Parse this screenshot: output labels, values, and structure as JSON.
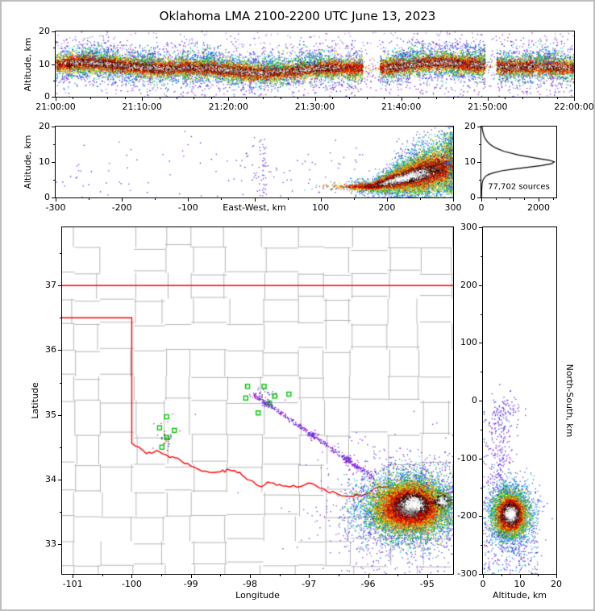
{
  "figure": {
    "title": "Oklahoma LMA 2100-2200 UTC June 13, 2023",
    "background": "#ffffff",
    "border_color": "#bdbdbd"
  },
  "palette": {
    "density_layers": [
      {
        "name": "sparse-purple",
        "color": "#8a2be2"
      },
      {
        "name": "blue",
        "color": "#2b2bee"
      },
      {
        "name": "cyan",
        "color": "#00b8e6"
      },
      {
        "name": "green",
        "color": "#00b300"
      },
      {
        "name": "yellow",
        "color": "#e6d800"
      },
      {
        "name": "orange",
        "color": "#ff8c00"
      },
      {
        "name": "red",
        "color": "#ee1100"
      },
      {
        "name": "dark-red",
        "color": "#990000"
      },
      {
        "name": "black",
        "color": "#141414"
      },
      {
        "name": "gray",
        "color": "#8f8f8f"
      },
      {
        "name": "white",
        "color": "#ffffff"
      }
    ],
    "station_marker": "#00c800",
    "state_border": "#ff0000",
    "county_border": "#b6b6b6",
    "histogram_line": "#000000",
    "trail_colors": [
      "#2b2bee",
      "#8a2be2",
      "#b400b4"
    ]
  },
  "chart_data": [
    {
      "id": "time_height",
      "type": "scatter",
      "ylabel": "Altitude, km",
      "x_ticks": [
        "21:00:00",
        "21:10:00",
        "21:20:00",
        "21:30:00",
        "21:40:00",
        "21:50:00",
        "22:00:00"
      ],
      "x_range_s": [
        0,
        3600
      ],
      "ylim": [
        0,
        20
      ],
      "y_ticks": [
        0,
        10,
        20
      ],
      "band": {
        "center_km": 9.0,
        "wave1_amp": 1.1,
        "wave1_period_s": 2600,
        "wave2_amp": 0.5,
        "wave2_period_s": 820
      },
      "gaps_s": [
        [
          2130,
          2250
        ],
        [
          2980,
          3060
        ]
      ],
      "core_windows_s": [
        [
          60,
          1980
        ],
        [
          2280,
          2820
        ],
        [
          2880,
          3600
        ]
      ],
      "tower_times_s": [
        300,
        620,
        1080,
        1500,
        1760,
        2450,
        2980,
        3380
      ],
      "layers": [
        {
          "layer": "sparse-purple",
          "n": 2600,
          "alt_std": 4.5
        },
        {
          "layer": "blue",
          "n": 3200,
          "alt_std": 3.1
        },
        {
          "layer": "cyan",
          "n": 4200,
          "alt_std": 2.4
        },
        {
          "layer": "green",
          "n": 5200,
          "alt_std": 1.9
        },
        {
          "layer": "yellow",
          "n": 5400,
          "alt_std": 1.5
        },
        {
          "layer": "orange",
          "n": 5400,
          "alt_std": 1.2
        },
        {
          "layer": "red",
          "n": 6000,
          "alt_std": 1.0
        },
        {
          "layer": "dark-red",
          "n": 3200,
          "alt_std": 0.8
        },
        {
          "layer": "black",
          "n": 2600,
          "alt_std": 0.62
        },
        {
          "layer": "gray",
          "n": 1500,
          "alt_std": 0.48
        },
        {
          "layer": "white",
          "n": 900,
          "alt_std": 0.36
        }
      ]
    },
    {
      "id": "ew_altitude",
      "type": "scatter",
      "xlabel": "East-West, km",
      "ylabel": "Altitude, km",
      "xlim": [
        -300,
        300
      ],
      "x_ticks": [
        -300,
        -200,
        -100,
        0,
        100,
        200,
        300
      ],
      "ylim": [
        0,
        20
      ],
      "y_ticks": [
        0,
        10,
        20
      ],
      "wedge": {
        "ew_center": 243,
        "ew_std": 42,
        "base_alt": 3.2,
        "alt_slope": 0.048,
        "spread0": 0.9,
        "spread_slope": 0.036,
        "start_ew": 175
      },
      "layers": [
        {
          "layer": "blue",
          "n": 1500,
          "k": 1.35
        },
        {
          "layer": "cyan",
          "n": 1800,
          "k": 1.08
        },
        {
          "layer": "green",
          "n": 2000,
          "k": 0.88
        },
        {
          "layer": "yellow",
          "n": 2000,
          "k": 0.7
        },
        {
          "layer": "orange",
          "n": 2000,
          "k": 0.56
        },
        {
          "layer": "red",
          "n": 2300,
          "k": 0.44
        },
        {
          "layer": "dark-red",
          "n": 1300,
          "k": 0.34
        },
        {
          "layer": "black",
          "n": 900,
          "k": 0.28,
          "ew_center": 234,
          "ew_std": 24
        },
        {
          "layer": "gray",
          "n": 500,
          "k": 0.22,
          "ew_center": 232,
          "ew_std": 19
        },
        {
          "layer": "white",
          "n": 330,
          "k": 0.17,
          "ew_center": 230,
          "ew_std": 16
        }
      ],
      "plume": {
        "ew_center": 296,
        "ew_std": 5,
        "alt_range": [
          1,
          18.5
        ],
        "n": 480
      },
      "sparse_field": {
        "n": 110,
        "ew_range": [
          -300,
          180
        ],
        "alt_mean": 7.5,
        "alt_std": 4.5
      },
      "sparse_column": {
        "ew_center": 12,
        "ew_std": 4,
        "alt_range": [
          0,
          17
        ],
        "n": 45
      }
    },
    {
      "id": "altitude_histogram",
      "type": "line",
      "annotation": "77,702 sources",
      "xlim": [
        0,
        2620
      ],
      "x_ticks": [
        0,
        2000
      ],
      "x_minor_ticks": [
        500,
        1000,
        1500,
        2500
      ],
      "ylim": [
        0,
        20
      ],
      "y_ticks": [
        0,
        10,
        20
      ],
      "profile_alt_km": [
        0,
        1,
        2,
        3,
        4,
        5,
        6,
        6.5,
        7,
        7.5,
        8,
        8.5,
        9,
        9.5,
        10,
        10.5,
        11,
        12,
        13,
        14,
        15,
        16,
        17,
        18,
        19,
        20
      ],
      "profile_counts": [
        5,
        8,
        12,
        18,
        30,
        60,
        150,
        260,
        450,
        700,
        1100,
        1600,
        2100,
        2450,
        2550,
        2380,
        1980,
        1280,
        790,
        490,
        300,
        185,
        110,
        70,
        40,
        25
      ]
    },
    {
      "id": "plan_view",
      "type": "scatter-map",
      "xlabel": "Longitude",
      "ylabel": "Latitude",
      "xlim": [
        -101.18,
        -94.56
      ],
      "x_ticks": [
        -101,
        -100,
        -99,
        -98,
        -97,
        -96,
        -95
      ],
      "x_minor_ticks": [
        -100.5,
        -99.5,
        -98.5,
        -97.5,
        -96.5,
        -95.5
      ],
      "ylim": [
        32.54,
        37.9
      ],
      "y_ticks": [
        33,
        34,
        35,
        36,
        37
      ],
      "y_minor_ticks": [
        33.5,
        34.5,
        35.5,
        36.5,
        37.5
      ],
      "state_border": {
        "north_lat": 37.0,
        "panhandle_lat": 36.5,
        "west_lon": -100.0,
        "red_river": [
          [
            -100,
            34.56
          ],
          [
            -99.75,
            34.4
          ],
          [
            -99.58,
            34.45
          ],
          [
            -99.4,
            34.37
          ],
          [
            -99.22,
            34.33
          ],
          [
            -99,
            34.21
          ],
          [
            -98.75,
            34.13
          ],
          [
            -98.5,
            34.12
          ],
          [
            -98.35,
            34.15
          ],
          [
            -98.17,
            34.11
          ],
          [
            -98,
            33.99
          ],
          [
            -97.85,
            33.9
          ],
          [
            -97.65,
            33.95
          ],
          [
            -97.45,
            33.9
          ],
          [
            -97.2,
            33.88
          ],
          [
            -96.95,
            33.94
          ],
          [
            -96.7,
            33.82
          ],
          [
            -96.5,
            33.77
          ],
          [
            -96.3,
            33.74
          ],
          [
            -96.1,
            33.75
          ],
          [
            -95.9,
            33.86
          ],
          [
            -95.7,
            33.89
          ],
          [
            -95.45,
            33.87
          ],
          [
            -95.2,
            33.92
          ],
          [
            -94.95,
            33.86
          ],
          [
            -94.7,
            33.77
          ],
          [
            -94.56,
            33.8
          ]
        ]
      },
      "stations_lon_lat": [
        [
          -98.04,
          35.44
        ],
        [
          -97.76,
          35.44
        ],
        [
          -98.07,
          35.26
        ],
        [
          -97.58,
          35.29
        ],
        [
          -97.34,
          35.32
        ],
        [
          -97.86,
          35.03
        ],
        [
          -97.67,
          35.18
        ],
        [
          -99.41,
          34.97
        ],
        [
          -99.53,
          34.8
        ],
        [
          -99.28,
          34.76
        ],
        [
          -99.41,
          34.65
        ],
        [
          -99.49,
          34.5
        ]
      ],
      "trail": {
        "from": [
          -97.95,
          35.33
        ],
        "to": [
          -95.95,
          34.05
        ],
        "n": 300,
        "jitter_deg": 0.05,
        "clumps": [
          0.12,
          0.5,
          0.8
        ],
        "clump_n": 30
      },
      "storm": {
        "center": [
          -95.3,
          33.58
        ],
        "lon_std": 0.38,
        "lat_std": 0.24,
        "layers": [
          {
            "layer": "blue",
            "n": 2200,
            "k": 1.3
          },
          {
            "layer": "cyan",
            "n": 2600,
            "k": 1.05
          },
          {
            "layer": "green",
            "n": 3000,
            "k": 0.9
          },
          {
            "layer": "yellow",
            "n": 3000,
            "k": 0.75
          },
          {
            "layer": "orange",
            "n": 3000,
            "k": 0.62
          },
          {
            "layer": "red",
            "n": 3400,
            "k": 0.5
          },
          {
            "layer": "dark-red",
            "n": 1800,
            "k": 0.4
          },
          {
            "layer": "black",
            "n": 1200,
            "k": 0.32,
            "center": [
              -95.25,
              33.62
            ]
          },
          {
            "layer": "gray",
            "n": 600,
            "k": 0.26
          },
          {
            "layer": "white",
            "n": 380,
            "k": 0.21,
            "center": [
              -95.22,
              33.63
            ]
          }
        ],
        "east_core": {
          "center": [
            -94.75,
            33.66
          ],
          "black_n": 260,
          "white_n": 110,
          "lon_std": 0.08,
          "lat_std": 0.05
        },
        "fringe": {
          "n": 700,
          "k": 2.0
        },
        "sprinkle": {
          "n": 150,
          "lon_range": [
            -96.4,
            -94.56
          ],
          "lat_range": [
            32.54,
            34.3
          ]
        }
      },
      "sw_cluster": {
        "center": [
          -99.42,
          34.62
        ],
        "n": 25,
        "std": 0.05
      },
      "sw_sparse": {
        "center": [
          -99.4,
          34.85
        ],
        "n": 12,
        "std": 0.15
      },
      "near_station_specks": {
        "center": [
          -97.75,
          35.3
        ],
        "n": 30,
        "lon_std": 0.18,
        "lat_std": 0.09
      }
    },
    {
      "id": "ns_altitude",
      "type": "scatter",
      "xlabel": "Altitude, km",
      "ylabel_right": "North-South, km",
      "xlim": [
        0,
        20
      ],
      "x_ticks": [
        0,
        10,
        20
      ],
      "ylim": [
        -300,
        300
      ],
      "y_ticks": [
        -300,
        -200,
        -100,
        0,
        100,
        200,
        300
      ],
      "storm": {
        "center_ns": -196,
        "center_alt": 7.4,
        "ns_std": 22,
        "alt_std": 2.6,
        "layers": [
          {
            "layer": "blue",
            "n": 1300,
            "k": 1.3
          },
          {
            "layer": "cyan",
            "n": 1500,
            "k": 1.05
          },
          {
            "layer": "green",
            "n": 1700,
            "k": 0.88
          },
          {
            "layer": "yellow",
            "n": 1700,
            "k": 0.72
          },
          {
            "layer": "orange",
            "n": 1700,
            "k": 0.6
          },
          {
            "layer": "red",
            "n": 1900,
            "k": 0.5
          },
          {
            "layer": "dark-red",
            "n": 1000,
            "k": 0.42
          },
          {
            "layer": "black",
            "n": 700,
            "k": 0.36
          },
          {
            "layer": "gray",
            "n": 350,
            "k": 0.3
          },
          {
            "layer": "white",
            "n": 220,
            "k": 0.26
          }
        ]
      },
      "trail": {
        "ns_range": [
          -165,
          -15
        ],
        "alt_mean": 4.5,
        "alt_std": 2.2,
        "n": 260
      },
      "near_zero_cluster": {
        "ns_mean": -10,
        "ns_std": 12,
        "alt_mean": 6,
        "alt_std": 2.5,
        "n": 70
      },
      "south_sparse": {
        "ns_range": [
          -300,
          -235
        ],
        "alt_range": [
          0,
          15
        ],
        "n": 190
      }
    }
  ]
}
